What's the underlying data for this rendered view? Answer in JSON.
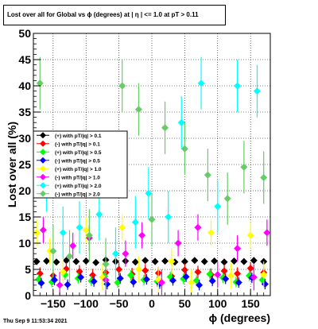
{
  "header": {
    "title": "Lost over all for Global vs ϕ (degrees) at |  η | <= 1.0 at pT > 0.11"
  },
  "footer": {
    "timestamp": "Thu Sep  9 11:53:34 2021"
  },
  "colors": {
    "black": "#000000",
    "red": "#ff0000",
    "green": "#00ff00",
    "blue": "#0000ff",
    "yellow": "#ffff00",
    "magenta": "#ff00ff",
    "cyan": "#00ffff",
    "lightgreen": "#66cc66"
  },
  "chart_data": {
    "type": "scatter",
    "xlabel": "ϕ (degrees)",
    "ylabel": "Lost over all (%)",
    "xlim": [
      -180,
      180
    ],
    "ylim": [
      0,
      50
    ],
    "x_ticks": [
      -150,
      -100,
      -50,
      0,
      50,
      100,
      150
    ],
    "x_tick_labels": [
      "−150",
      "−100",
      "−50",
      "0",
      "50",
      "100",
      "150"
    ],
    "y_ticks": [
      0,
      5,
      10,
      15,
      20,
      25,
      30,
      35,
      40,
      45,
      50
    ],
    "y_tick_labels": [
      "0",
      "5",
      "10",
      "15",
      "20",
      "25",
      "30",
      "35",
      "40",
      "45",
      "50"
    ],
    "grid": true,
    "legend_position": "left",
    "series": [
      {
        "name": "(+) with pT/|q| > 0.1",
        "color": "black",
        "x": [
          -175,
          -160,
          -145,
          -130,
          -115,
          -100,
          -85,
          -70,
          -55,
          -40,
          -25,
          -10,
          5,
          20,
          35,
          50,
          65,
          80,
          95,
          110,
          125,
          140,
          155,
          170
        ],
        "y": [
          6.5,
          6.6,
          6.4,
          6.7,
          6.5,
          6.6,
          6.3,
          6.8,
          6.5,
          6.6,
          6.4,
          6.7,
          6.5,
          6.6,
          6.4,
          6.5,
          6.7,
          6.5,
          6.6,
          6.4,
          6.6,
          6.5,
          6.7,
          6.5
        ],
        "err": [
          0.3,
          0.3,
          0.3,
          0.3,
          0.3,
          0.3,
          0.3,
          0.3,
          0.3,
          0.3,
          0.3,
          0.3,
          0.3,
          0.3,
          0.3,
          0.3,
          0.3,
          0.3,
          0.3,
          0.3,
          0.3,
          0.3,
          0.3,
          0.3
        ]
      },
      {
        "name": "(-) with pT/|q| > 0.1",
        "color": "red",
        "x": [
          -170,
          -150,
          -130,
          -110,
          -90,
          -70,
          -50,
          -30,
          -10,
          10,
          30,
          50,
          70,
          90,
          110,
          130,
          150,
          170
        ],
        "y": [
          4.2,
          3.8,
          5.1,
          4.6,
          3.9,
          4.4,
          5.0,
          4.1,
          4.8,
          4.3,
          3.7,
          4.9,
          4.5,
          4.0,
          4.7,
          4.2,
          5.2,
          4.4
        ],
        "err": [
          1.2,
          1.2,
          1.2,
          1.2,
          1.2,
          1.2,
          1.2,
          1.2,
          1.2,
          1.2,
          1.2,
          1.2,
          1.2,
          1.2,
          1.2,
          1.2,
          1.2,
          1.2
        ]
      },
      {
        "name": "(+) with pT/|q| > 0.5",
        "color": "green",
        "x": [
          -172,
          -152,
          -132,
          -112,
          -92,
          -72,
          -52,
          -32,
          -12,
          8,
          28,
          48,
          68,
          88,
          108,
          128,
          148,
          168
        ],
        "y": [
          3.1,
          2.6,
          4.0,
          3.3,
          2.8,
          3.7,
          2.5,
          3.9,
          3.0,
          2.7,
          3.6,
          3.2,
          2.9,
          4.1,
          3.4,
          2.6,
          3.8,
          3.0
        ],
        "err": [
          1.0,
          1.0,
          1.0,
          1.0,
          1.0,
          1.0,
          1.0,
          1.0,
          1.0,
          1.0,
          1.0,
          1.0,
          1.0,
          1.0,
          1.0,
          1.0,
          1.0,
          1.0
        ]
      },
      {
        "name": "(-) with pT/|q| > 0.5",
        "color": "blue",
        "x": [
          -168,
          -148,
          -128,
          -108,
          -88,
          -68,
          -48,
          -28,
          -8,
          12,
          32,
          52,
          72,
          92,
          112,
          132,
          152,
          172
        ],
        "y": [
          2.4,
          3.0,
          2.1,
          3.5,
          2.7,
          2.2,
          3.3,
          2.6,
          3.1,
          2.3,
          2.9,
          3.6,
          2.0,
          2.8,
          3.2,
          2.5,
          3.4,
          2.2
        ],
        "err": [
          1.0,
          1.0,
          1.0,
          1.0,
          1.0,
          1.0,
          1.0,
          1.0,
          1.0,
          1.0,
          1.0,
          1.0,
          1.0,
          1.0,
          1.0,
          1.0,
          1.0,
          1.0
        ]
      },
      {
        "name": "(+) with pT/|q| > 1.0",
        "color": "yellow",
        "x": [
          -175,
          -155,
          -135,
          -100,
          -75,
          -45,
          -20,
          10,
          30,
          60,
          90,
          120,
          150,
          170
        ],
        "y": [
          12.0,
          8.5,
          4.5,
          12.5,
          3.5,
          13.0,
          5.0,
          3.0,
          6.5,
          2.5,
          12.0,
          3.8,
          11.5,
          4.0
        ],
        "err": [
          2.5,
          2.5,
          2.5,
          2.5,
          2.5,
          2.5,
          2.5,
          2.5,
          2.5,
          2.5,
          2.5,
          2.5,
          2.5,
          2.5
        ]
      },
      {
        "name": "(-) with pT/|q| > 1.0",
        "color": "magenta",
        "x": [
          -165,
          -140,
          -120,
          -95,
          -70,
          -40,
          -15,
          15,
          40,
          70,
          100,
          130,
          155,
          175
        ],
        "y": [
          12.5,
          2.0,
          9.5,
          11.0,
          3.0,
          8.0,
          11.5,
          2.5,
          10.0,
          13.0,
          4.0,
          9.0,
          3.5,
          12.0
        ],
        "err": [
          2.5,
          2.5,
          2.5,
          2.5,
          2.5,
          2.5,
          2.5,
          2.5,
          2.5,
          2.5,
          2.5,
          2.5,
          2.5,
          2.5
        ]
      },
      {
        "name": "(+) with pT/|q| > 2.0",
        "color": "cyan",
        "x": [
          -160,
          -135,
          -110,
          -80,
          -55,
          -25,
          -5,
          25,
          45,
          75,
          100,
          130,
          160
        ],
        "y": [
          21.0,
          12.0,
          13.0,
          15.5,
          8.0,
          14.0,
          19.5,
          15.0,
          33.0,
          40.5,
          17.0,
          40.0,
          39.0
        ],
        "err": [
          5,
          5,
          5,
          5,
          5,
          5,
          5,
          5,
          5,
          5,
          5,
          5,
          5
        ]
      },
      {
        "name": "(-) with pT/|q| > 2.0",
        "color": "lightgreen",
        "x": [
          -170,
          -150,
          -125,
          -95,
          -70,
          -45,
          -20,
          0,
          20,
          50,
          85,
          115,
          140,
          170
        ],
        "y": [
          40.5,
          8.5,
          7.5,
          11.5,
          6.0,
          40.0,
          35.5,
          14.5,
          32.0,
          28.0,
          23.0,
          18.5,
          24.5,
          22.5
        ],
        "err": [
          5,
          5,
          5,
          5,
          5,
          5,
          5,
          5,
          5,
          5,
          5,
          5,
          5,
          5
        ]
      }
    ]
  }
}
